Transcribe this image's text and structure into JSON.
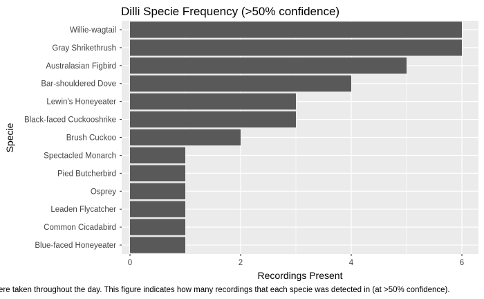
{
  "chart_data": {
    "type": "bar",
    "orientation": "horizontal",
    "title": "Dilli Specie Frequency (>50% confidence)",
    "xlabel": "Recordings Present",
    "ylabel": "Specie",
    "caption": "ere taken throughout the day. This figure indicates how many recordings that each specie was detected in (at >50% confidence).",
    "categories": [
      "Willie-wagtail",
      "Gray Shrikethrush",
      "Australasian Figbird",
      "Bar-shouldered Dove",
      "Lewin's Honeyeater",
      "Black-faced Cuckooshrike",
      "Brush Cuckoo",
      "Spectacled Monarch",
      "Pied Butcherbird",
      "Osprey",
      "Leaden Flycatcher",
      "Common Cicadabird",
      "Blue-faced Honeyeater"
    ],
    "values": [
      6,
      6,
      5,
      4,
      3,
      3,
      2,
      1,
      1,
      1,
      1,
      1,
      1
    ],
    "xlim": [
      -0.15,
      6.3
    ],
    "xticks": [
      0,
      2,
      4,
      6
    ],
    "grid": true,
    "legend": "none",
    "colors": {
      "bar": "#595959",
      "panel": "#ebebeb",
      "grid": "#ffffff"
    }
  }
}
